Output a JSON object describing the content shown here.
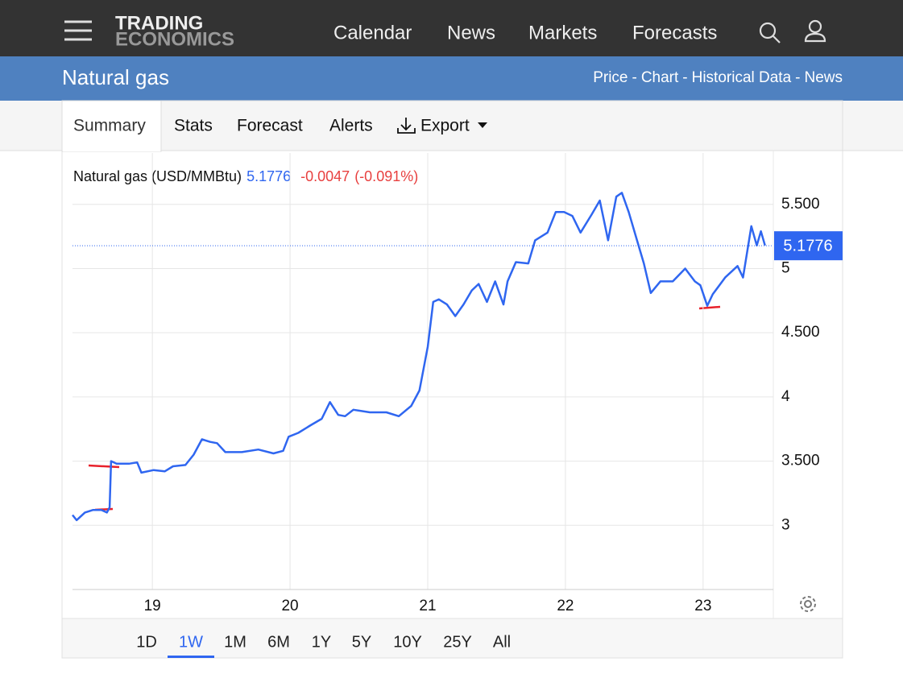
{
  "header": {
    "logo": [
      "TRADING",
      "ECONOMICS"
    ],
    "nav": [
      "Calendar",
      "News",
      "Markets",
      "Forecasts"
    ]
  },
  "title_bar": {
    "title": "Natural gas",
    "links": [
      "Price",
      "Chart",
      "Historical Data",
      "News"
    ],
    "separator": "-"
  },
  "tabs": [
    "Summary",
    "Stats",
    "Forecast",
    "Alerts",
    "Export"
  ],
  "selected_tab": "Summary",
  "ranges": [
    "1D",
    "1W",
    "1M",
    "6M",
    "1Y",
    "5Y",
    "10Y",
    "25Y",
    "All"
  ],
  "selected_range": "1W",
  "chart_data": {
    "type": "line",
    "title": "Natural gas (USD/MMBtu)",
    "last": 5.1776,
    "change": -0.0047,
    "change_pct": {
      "value": -0.091,
      "label": "(-0.091%)"
    },
    "color": "#2f66f0",
    "grid": true,
    "y_axis_side": "right",
    "x": [
      18.42,
      18.45,
      18.51,
      18.57,
      18.63,
      18.67,
      18.69,
      18.7,
      18.74,
      18.83,
      18.89,
      18.92,
      19.01,
      19.09,
      19.15,
      19.24,
      19.3,
      19.36,
      19.42,
      19.47,
      19.53,
      19.65,
      19.77,
      19.88,
      19.95,
      19.99,
      20.06,
      20.15,
      20.23,
      20.29,
      20.35,
      20.4,
      20.46,
      20.58,
      20.7,
      20.79,
      20.88,
      20.94,
      21.0,
      21.04,
      21.08,
      21.14,
      21.2,
      21.26,
      21.32,
      21.37,
      21.43,
      21.49,
      21.55,
      21.58,
      21.64,
      21.73,
      21.78,
      21.87,
      21.93,
      21.99,
      22.05,
      22.11,
      22.19,
      22.25,
      22.31,
      22.37,
      22.41,
      22.46,
      22.52,
      22.57,
      22.62,
      22.69,
      22.78,
      22.87,
      22.94,
      22.98,
      23.03,
      23.07,
      23.16,
      23.25,
      23.29,
      23.35,
      23.39,
      23.42,
      23.45
    ],
    "values": [
      3.08,
      3.04,
      3.1,
      3.12,
      3.12,
      3.1,
      3.14,
      3.5,
      3.48,
      3.48,
      3.49,
      3.41,
      3.43,
      3.42,
      3.46,
      3.47,
      3.55,
      3.67,
      3.65,
      3.64,
      3.57,
      3.57,
      3.59,
      3.56,
      3.58,
      3.69,
      3.72,
      3.78,
      3.83,
      3.96,
      3.86,
      3.85,
      3.9,
      3.88,
      3.88,
      3.85,
      3.93,
      4.05,
      4.39,
      4.74,
      4.76,
      4.72,
      4.63,
      4.72,
      4.83,
      4.88,
      4.74,
      4.9,
      4.72,
      4.9,
      5.05,
      5.04,
      5.22,
      5.28,
      5.44,
      5.44,
      5.41,
      5.28,
      5.42,
      5.53,
      5.22,
      5.56,
      5.59,
      5.44,
      5.22,
      5.04,
      4.81,
      4.9,
      4.9,
      5.0,
      4.9,
      4.87,
      4.71,
      4.8,
      4.93,
      5.02,
      4.93,
      5.33,
      5.18,
      5.29,
      5.18
    ],
    "xlim": [
      18.42,
      23.51
    ],
    "xticks": [
      19,
      20,
      21,
      22,
      23
    ],
    "ylim": [
      2.5,
      5.9
    ],
    "yticks": [
      3,
      {
        "value": 3.5,
        "label": "3.500"
      },
      4,
      {
        "value": 4.5,
        "label": "4.500"
      },
      5,
      {
        "value": 5.5,
        "label": "5.500"
      }
    ]
  }
}
